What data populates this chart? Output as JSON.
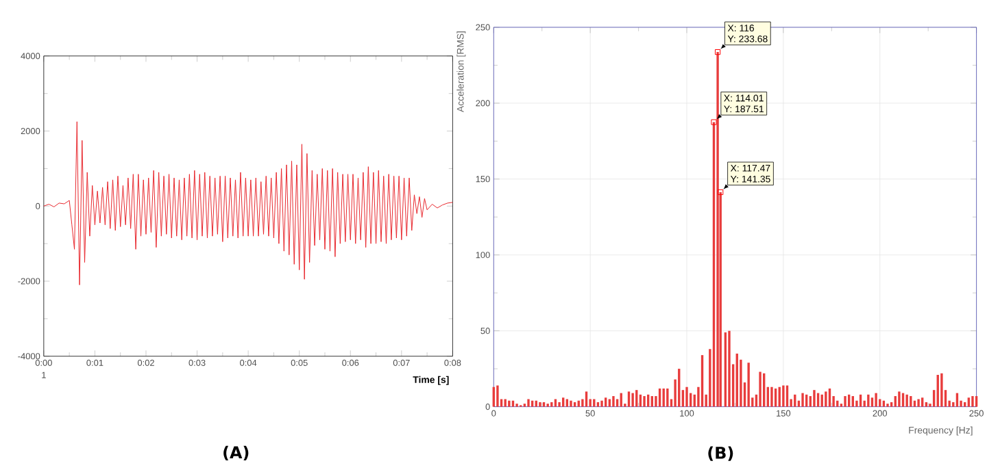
{
  "chart_data": [
    {
      "type": "line",
      "title": "(A)",
      "xlabel": "Time [s]",
      "color": "#e8262c",
      "x": [
        0,
        0.1,
        0.2,
        0.3,
        0.4,
        0.5,
        0.55,
        0.6,
        0.65,
        0.7,
        0.75,
        0.8,
        0.85,
        0.9,
        0.95,
        1.0,
        1.05,
        1.1,
        1.15,
        1.2,
        1.25,
        1.3,
        1.35,
        1.4,
        1.45,
        1.5,
        1.55,
        1.6,
        1.65,
        1.7,
        1.75,
        1.8,
        1.85,
        1.9,
        1.95,
        2.0,
        2.05,
        2.1,
        2.15,
        2.2,
        2.25,
        2.3,
        2.35,
        2.4,
        2.45,
        2.5,
        2.55,
        2.6,
        2.65,
        2.7,
        2.75,
        2.8,
        2.85,
        2.9,
        2.95,
        3.0,
        3.05,
        3.1,
        3.15,
        3.2,
        3.25,
        3.3,
        3.35,
        3.4,
        3.45,
        3.5,
        3.55,
        3.6,
        3.65,
        3.7,
        3.75,
        3.8,
        3.85,
        3.9,
        3.95,
        4.0,
        4.05,
        4.1,
        4.15,
        4.2,
        4.25,
        4.3,
        4.35,
        4.4,
        4.45,
        4.5,
        4.55,
        4.6,
        4.65,
        4.7,
        4.75,
        4.8,
        4.85,
        4.9,
        4.95,
        5.0,
        5.05,
        5.1,
        5.15,
        5.2,
        5.25,
        5.3,
        5.35,
        5.4,
        5.45,
        5.5,
        5.55,
        5.6,
        5.65,
        5.7,
        5.75,
        5.8,
        5.85,
        5.9,
        5.95,
        6.0,
        6.05,
        6.1,
        6.15,
        6.2,
        6.25,
        6.3,
        6.35,
        6.4,
        6.45,
        6.5,
        6.55,
        6.6,
        6.65,
        6.7,
        6.75,
        6.8,
        6.85,
        6.9,
        6.95,
        7.0,
        7.05,
        7.1,
        7.15,
        7.2,
        7.25,
        7.3,
        7.35,
        7.4,
        7.45,
        7.5,
        7.6,
        7.7,
        7.8,
        7.9,
        8
      ],
      "values": [
        0,
        50,
        -20,
        80,
        60,
        150,
        -500,
        -1150,
        2250,
        -2100,
        1750,
        -1500,
        900,
        -800,
        550,
        -500,
        400,
        -450,
        500,
        -500,
        650,
        -600,
        700,
        -650,
        800,
        -550,
        550,
        -500,
        750,
        -600,
        850,
        -1150,
        850,
        -800,
        700,
        -750,
        750,
        -700,
        950,
        -1100,
        900,
        -800,
        800,
        -750,
        850,
        -850,
        750,
        -800,
        700,
        -900,
        750,
        -800,
        850,
        -850,
        950,
        -900,
        850,
        -800,
        900,
        -850,
        800,
        -800,
        750,
        -750,
        800,
        -950,
        800,
        -850,
        750,
        -800,
        700,
        -850,
        900,
        -800,
        750,
        -800,
        700,
        -800,
        750,
        -800,
        650,
        -750,
        800,
        -800,
        750,
        -850,
        900,
        -1000,
        1000,
        -1200,
        1100,
        -1300,
        1200,
        -1550,
        1100,
        -1700,
        1650,
        -1950,
        1400,
        -1500,
        950,
        -1050,
        850,
        -900,
        1000,
        -1150,
        950,
        -1200,
        1000,
        -1350,
        900,
        -1000,
        850,
        -950,
        850,
        -900,
        850,
        -1000,
        750,
        -900,
        900,
        -1100,
        1050,
        -1000,
        900,
        -1000,
        950,
        -950,
        800,
        -1000,
        850,
        -900,
        800,
        -850,
        800,
        -900,
        750,
        -800,
        750,
        -650,
        300,
        -200,
        250,
        -300,
        200,
        -100,
        50,
        -50,
        30,
        80,
        100
      ],
      "xlim": [
        0,
        8
      ],
      "ylim": [
        -4000,
        4000
      ],
      "xticks": [
        {
          "value": 0,
          "label": "0:00"
        },
        {
          "value": 1,
          "label": "0:01"
        },
        {
          "value": 2,
          "label": "0:02"
        },
        {
          "value": 3,
          "label": "0:03"
        },
        {
          "value": 4,
          "label": "0:04"
        },
        {
          "value": 5,
          "label": "0:05"
        },
        {
          "value": 6,
          "label": "0:06"
        },
        {
          "value": 7,
          "label": "0:07"
        },
        {
          "value": 8,
          "label": "0:08"
        }
      ],
      "yticks": [
        -4000,
        -2000,
        0,
        2000,
        4000
      ],
      "annotations": [
        "1"
      ]
    },
    {
      "type": "bar",
      "title": "(B)",
      "xlabel": "Frequency [Hz]",
      "ylabel": "Acceleration [RMS]",
      "color": "#e83c3c",
      "x": [
        0,
        2,
        4,
        6,
        8,
        10,
        12,
        14,
        16,
        18,
        20,
        22,
        24,
        26,
        28,
        30,
        32,
        34,
        36,
        38,
        40,
        42,
        44,
        46,
        48,
        50,
        52,
        54,
        56,
        58,
        60,
        62,
        64,
        66,
        68,
        70,
        72,
        74,
        76,
        78,
        80,
        82,
        84,
        86,
        88,
        90,
        92,
        94,
        96,
        98,
        100,
        102,
        104,
        106,
        108,
        110,
        112,
        114.01,
        116,
        117.47,
        120,
        122,
        124,
        126,
        128,
        130,
        132,
        134,
        136,
        138,
        140,
        142,
        144,
        146,
        148,
        150,
        152,
        154,
        156,
        158,
        160,
        162,
        164,
        166,
        168,
        170,
        172,
        174,
        176,
        178,
        180,
        182,
        184,
        186,
        188,
        190,
        192,
        194,
        196,
        198,
        200,
        202,
        204,
        206,
        208,
        210,
        212,
        214,
        216,
        218,
        220,
        222,
        224,
        226,
        228,
        230,
        232,
        234,
        236,
        238,
        240,
        242,
        244,
        246,
        248,
        250
      ],
      "values": [
        13,
        14,
        5,
        5,
        4,
        4,
        2,
        1,
        2,
        5,
        4,
        4,
        3,
        3,
        2,
        3,
        5,
        3,
        6,
        5,
        4,
        3,
        4,
        5,
        10,
        5,
        5,
        3,
        4,
        6,
        5,
        7,
        5,
        9,
        2,
        10,
        9,
        11,
        8,
        7,
        8,
        7,
        7,
        12,
        12,
        12,
        5,
        18,
        25,
        11,
        13,
        9,
        8,
        13,
        34,
        8,
        38,
        187.51,
        233.68,
        141.35,
        49,
        50,
        28,
        35,
        31,
        16,
        29,
        6,
        8,
        23,
        22,
        13,
        13,
        12,
        13,
        14,
        14,
        5,
        8,
        4,
        9,
        8,
        7,
        11,
        9,
        8,
        10,
        12,
        7,
        4,
        2,
        7,
        8,
        7,
        4,
        8,
        4,
        8,
        6,
        9,
        5,
        4,
        2,
        3,
        7,
        10,
        9,
        8,
        7,
        4,
        5,
        6,
        3,
        2,
        11,
        21,
        22,
        11,
        4,
        3,
        9,
        4,
        3,
        6,
        7,
        7
      ],
      "xlim": [
        0,
        250
      ],
      "ylim": [
        0,
        250
      ],
      "xticks": [
        0,
        50,
        100,
        150,
        200,
        250
      ],
      "yticks": [
        0,
        50,
        100,
        150,
        200,
        250
      ],
      "grid": true,
      "annotations": [
        {
          "text": "X: 116",
          "x": 116,
          "y": 233.68
        },
        {
          "text": "Y: 233.68",
          "x": 116,
          "y": 233.68
        },
        {
          "text": "X: 114.01",
          "x": 114.01,
          "y": 187.51
        },
        {
          "text": "Y: 187.51",
          "x": 114.01,
          "y": 187.51
        },
        {
          "text": "X: 117.47",
          "x": 117.47,
          "y": 141.35
        },
        {
          "text": "Y: 141.35",
          "x": 117.47,
          "y": 141.35
        }
      ]
    }
  ]
}
